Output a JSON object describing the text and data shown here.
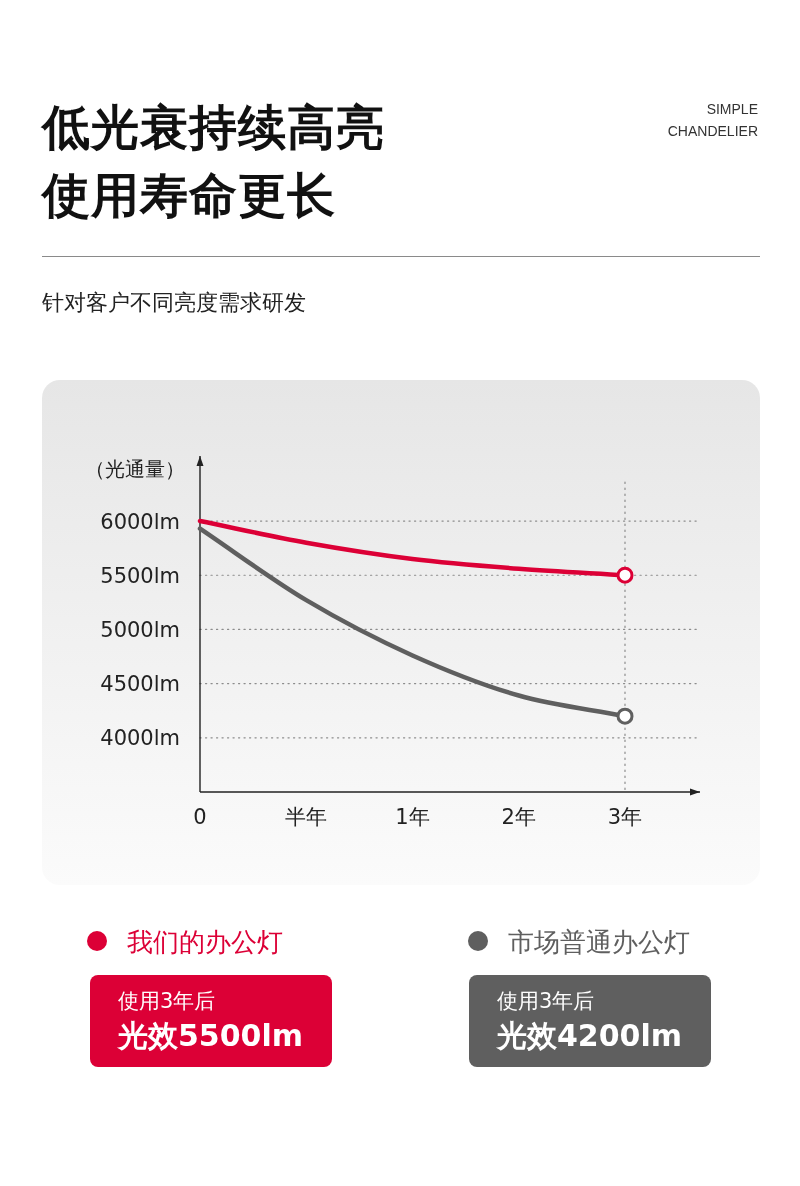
{
  "chart_data": {
    "type": "line",
    "title": "低光衰持续高亮使用寿命更长",
    "subtitle": "针对客户不同亮度需求研发",
    "ylabel": "（光通量）",
    "categories": [
      "0",
      "半年",
      "1年",
      "2年",
      "3年"
    ],
    "series": [
      {
        "name": "我们的办公灯",
        "color": "#dc0036",
        "values": [
          6000,
          5800,
          5650,
          5560,
          5500
        ]
      },
      {
        "name": "市场普通办公灯",
        "color": "#5f5f5f",
        "values": [
          5930,
          5270,
          4760,
          4390,
          4200
        ]
      },
      {
        "type": "scatter",
        "color": "#dc0036",
        "marker": "circle",
        "values": [
          null,
          null,
          null,
          null,
          5500
        ]
      },
      {
        "type": "scatter",
        "color": "#5f5f5f",
        "marker": "circle",
        "values": [
          null,
          null,
          null,
          null,
          4200
        ]
      }
    ],
    "ylim": [
      3500,
      6600
    ],
    "yticks": [
      {
        "value": 4000,
        "label": "4000lm"
      },
      {
        "value": 4500,
        "label": "4500lm"
      },
      {
        "value": 5000,
        "label": "5000lm"
      },
      {
        "value": 5500,
        "label": "5500lm"
      },
      {
        "value": 6000,
        "label": "6000lm"
      }
    ],
    "grid": "y",
    "marker": "none",
    "line_style": "solid",
    "legend": "bottom",
    "ref_lines": [
      {
        "axis": "x",
        "value": "3年",
        "color": "#8c8c8c",
        "line_style": "dotted"
      }
    ],
    "annotations": [
      "SIMPLE CHANDELIER",
      "使用3年后",
      "光效5500lm",
      "使用3年后",
      "光效4200lm"
    ]
  }
}
